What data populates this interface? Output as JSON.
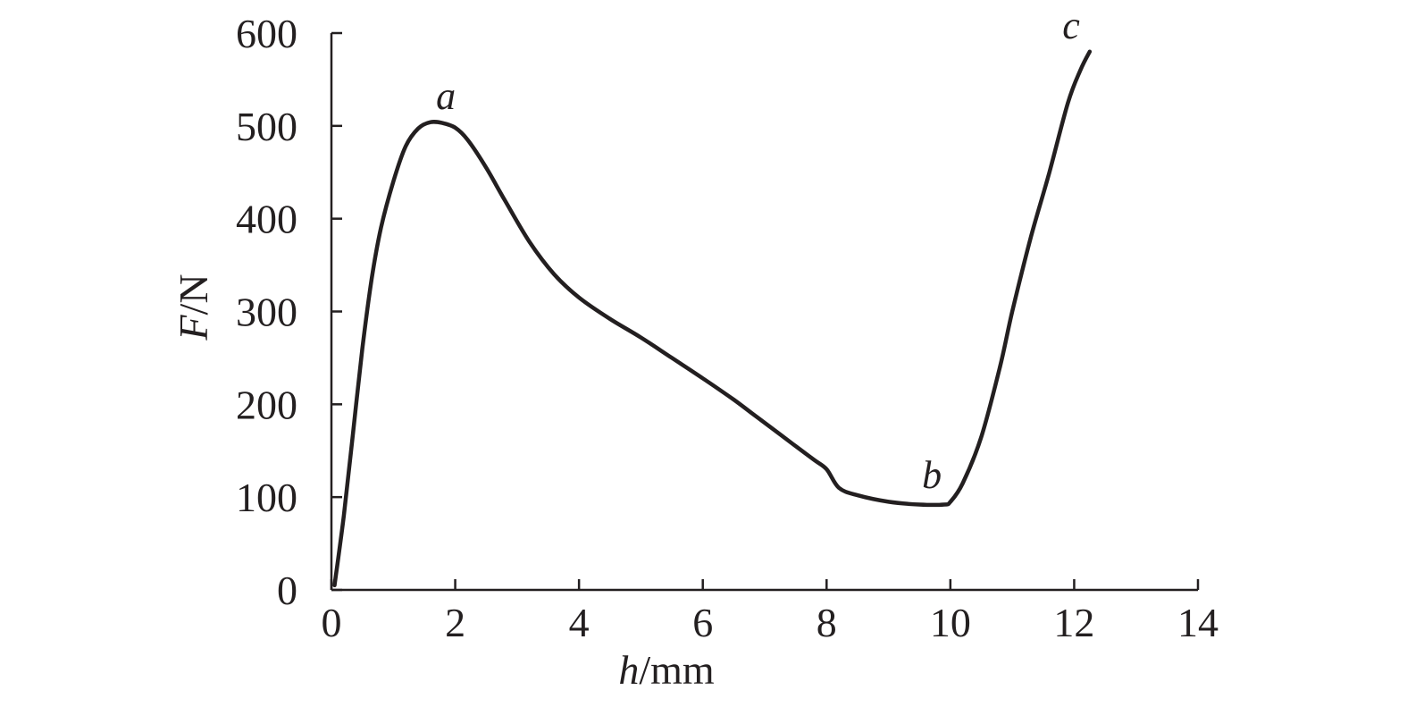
{
  "chart_data": {
    "type": "line",
    "xlabel": {
      "italic": "h",
      "rest": "/mm"
    },
    "ylabel": {
      "italic": "F",
      "rest": "/N"
    },
    "xlim": [
      0,
      14
    ],
    "ylim": [
      0,
      600
    ],
    "xticks": [
      "0",
      "2",
      "4",
      "6",
      "8",
      "10",
      "12",
      "14"
    ],
    "yticks": [
      "0",
      "100",
      "200",
      "300",
      "400",
      "500",
      "600"
    ],
    "grid": false,
    "legend": "none",
    "line_color": "#231f20",
    "series": [
      {
        "x": [
          0.05,
          0.2,
          0.35,
          0.5,
          0.65,
          0.8,
          1.0,
          1.2,
          1.4,
          1.6,
          1.8,
          2.0,
          2.2,
          2.5,
          2.8,
          3.2,
          3.6,
          4.0,
          4.5,
          5.0,
          5.5,
          6.0,
          6.5,
          6.8,
          7.0,
          7.5,
          7.8,
          8.0,
          8.2,
          8.5,
          9.0,
          9.5,
          9.9,
          10.0,
          10.2,
          10.5,
          10.8,
          11.0,
          11.3,
          11.6,
          11.9,
          12.1,
          12.25
        ],
        "y": [
          5,
          80,
          170,
          260,
          335,
          390,
          440,
          478,
          497,
          504,
          503,
          498,
          485,
          455,
          420,
          375,
          340,
          315,
          292,
          272,
          250,
          228,
          205,
          190,
          180,
          155,
          140,
          130,
          110,
          102,
          95,
          92,
          92,
          95,
          115,
          165,
          240,
          300,
          380,
          450,
          525,
          560,
          580
        ]
      }
    ],
    "annotations": [
      {
        "text": "a",
        "x": 1.85,
        "y": 518
      },
      {
        "text": "b",
        "x": 9.7,
        "y": 110
      },
      {
        "text": "c",
        "x": 11.95,
        "y": 594
      }
    ]
  }
}
